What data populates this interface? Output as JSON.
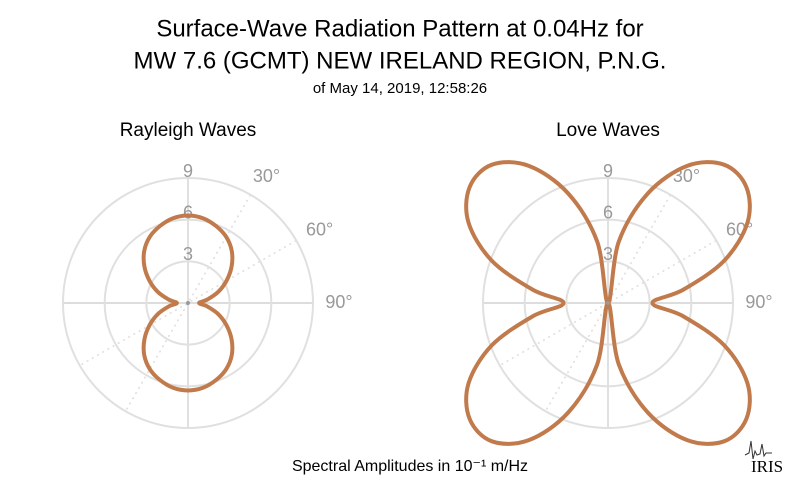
{
  "title": "Surface-Wave Radiation Pattern at 0.04Hz for",
  "subtitle": "MW 7.6 (GCMT) NEW IRELAND REGION, P.N.G.",
  "date": "of May 14, 2019, 12:58:26",
  "footer": "Spectral Amplitudes in 10⁻¹ m/Hz",
  "logo": "IRIS",
  "chart_data": [
    {
      "type": "polar",
      "title": "Rayleigh Waves",
      "color": "#c07a4c",
      "theta": [
        0,
        10,
        20,
        30,
        40,
        50,
        60,
        70,
        80,
        90,
        100,
        110,
        120,
        130,
        140,
        150,
        160,
        170,
        180,
        190,
        200,
        210,
        220,
        230,
        240,
        250,
        260,
        270,
        280,
        290,
        300,
        310,
        320,
        330,
        340,
        350,
        360
      ],
      "values": [
        6.3,
        6.2,
        5.9,
        5.5,
        4.9,
        4.1,
        3.2,
        2.3,
        1.4,
        0.8,
        1.4,
        2.3,
        3.2,
        4.1,
        4.9,
        5.5,
        5.9,
        6.2,
        6.3,
        6.2,
        5.9,
        5.5,
        4.9,
        4.1,
        3.2,
        2.3,
        1.4,
        0.8,
        1.4,
        2.3,
        3.2,
        4.1,
        4.9,
        5.5,
        5.9,
        6.2,
        6.3
      ],
      "rlim": [
        0,
        9
      ],
      "rticks": [
        3,
        6,
        9
      ],
      "thetaticks": [
        {
          "value": 30,
          "label": "30°"
        },
        {
          "value": 60,
          "label": "60°"
        },
        {
          "value": 90,
          "label": "90°"
        }
      ],
      "grid": true
    },
    {
      "type": "polar",
      "title": "Love Waves",
      "color": "#c07a4c",
      "theta": [
        0,
        10,
        20,
        30,
        40,
        50,
        60,
        70,
        80,
        90,
        100,
        110,
        120,
        130,
        140,
        150,
        160,
        170,
        180,
        190,
        200,
        210,
        220,
        230,
        240,
        250,
        260,
        270,
        280,
        290,
        300,
        310,
        320,
        330,
        340,
        350,
        360
      ],
      "values": [
        0,
        4.5,
        8.4,
        11.4,
        13,
        13,
        11.6,
        8.9,
        5.5,
        3.2,
        5.5,
        8.9,
        11.6,
        13,
        13,
        11.4,
        8.4,
        4.5,
        0,
        4.5,
        8.4,
        11.4,
        13,
        13,
        11.6,
        8.9,
        5.5,
        3.2,
        5.5,
        8.9,
        11.6,
        13,
        13,
        11.4,
        8.4,
        4.5,
        0
      ],
      "rlim": [
        0,
        9
      ],
      "rticks": [
        3,
        6,
        9
      ],
      "thetaticks": [
        {
          "value": 30,
          "label": "30°"
        },
        {
          "value": 60,
          "label": "60°"
        },
        {
          "value": 90,
          "label": "90°"
        }
      ],
      "grid": true
    }
  ]
}
